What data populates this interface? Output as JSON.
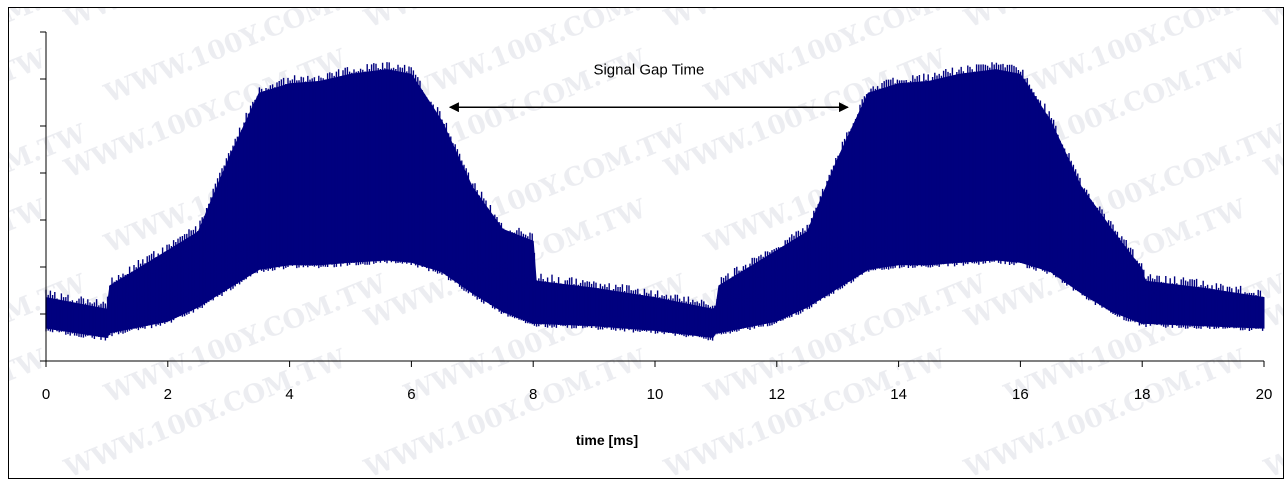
{
  "chart_data": {
    "type": "area",
    "title": "",
    "xlabel": "time [ms]",
    "ylabel": "",
    "xlim": [
      0,
      20
    ],
    "ylim": [
      0,
      7
    ],
    "x_ticks": [
      0,
      2,
      4,
      6,
      8,
      10,
      12,
      14,
      16,
      18,
      20
    ],
    "y_tick_count": 8,
    "y_tick_labels_shown": false,
    "grid": false,
    "legend": "none",
    "series": [
      {
        "color": "#00007f",
        "x": [
          0,
          1.0,
          1.05,
          2.0,
          2.5,
          3.0,
          3.5,
          4.0,
          4.5,
          5.0,
          5.6,
          6.0,
          6.5,
          7.0,
          7.5,
          8.0,
          8.05,
          9.0,
          10.0,
          10.95,
          11.0,
          11.05,
          12.0,
          12.5,
          13.0,
          13.5,
          14.0,
          14.5,
          15.0,
          15.6,
          16.0,
          16.5,
          17.0,
          17.5,
          18.0,
          18.05,
          19.0,
          20.0
        ],
        "upper": [
          1.35,
          1.1,
          1.6,
          2.35,
          2.75,
          4.3,
          5.7,
          5.9,
          5.95,
          6.1,
          6.2,
          6.1,
          5.1,
          3.7,
          2.8,
          2.55,
          1.7,
          1.55,
          1.35,
          1.1,
          1.15,
          1.6,
          2.35,
          2.75,
          4.3,
          5.7,
          5.9,
          5.95,
          6.1,
          6.2,
          6.1,
          5.1,
          3.7,
          2.8,
          1.95,
          1.7,
          1.55,
          1.35
        ],
        "lower": [
          0.7,
          0.5,
          0.6,
          0.85,
          1.15,
          1.55,
          1.95,
          2.05,
          2.05,
          2.1,
          2.15,
          2.1,
          1.9,
          1.45,
          1.05,
          0.8,
          0.8,
          0.75,
          0.65,
          0.5,
          0.6,
          0.6,
          0.85,
          1.15,
          1.55,
          1.95,
          2.05,
          2.05,
          2.1,
          2.15,
          2.1,
          1.9,
          1.45,
          1.05,
          0.8,
          0.8,
          0.75,
          0.7
        ]
      }
    ],
    "annotations": [
      {
        "text": "Signal Gap Time",
        "type": "double-arrow",
        "x_start": 6.6,
        "x_end": 13.2,
        "y": 5.4,
        "text_y": 6.1
      }
    ]
  },
  "watermark": {
    "text": "WWW.100Y.COM.TW",
    "color": "#c8ccd6"
  }
}
